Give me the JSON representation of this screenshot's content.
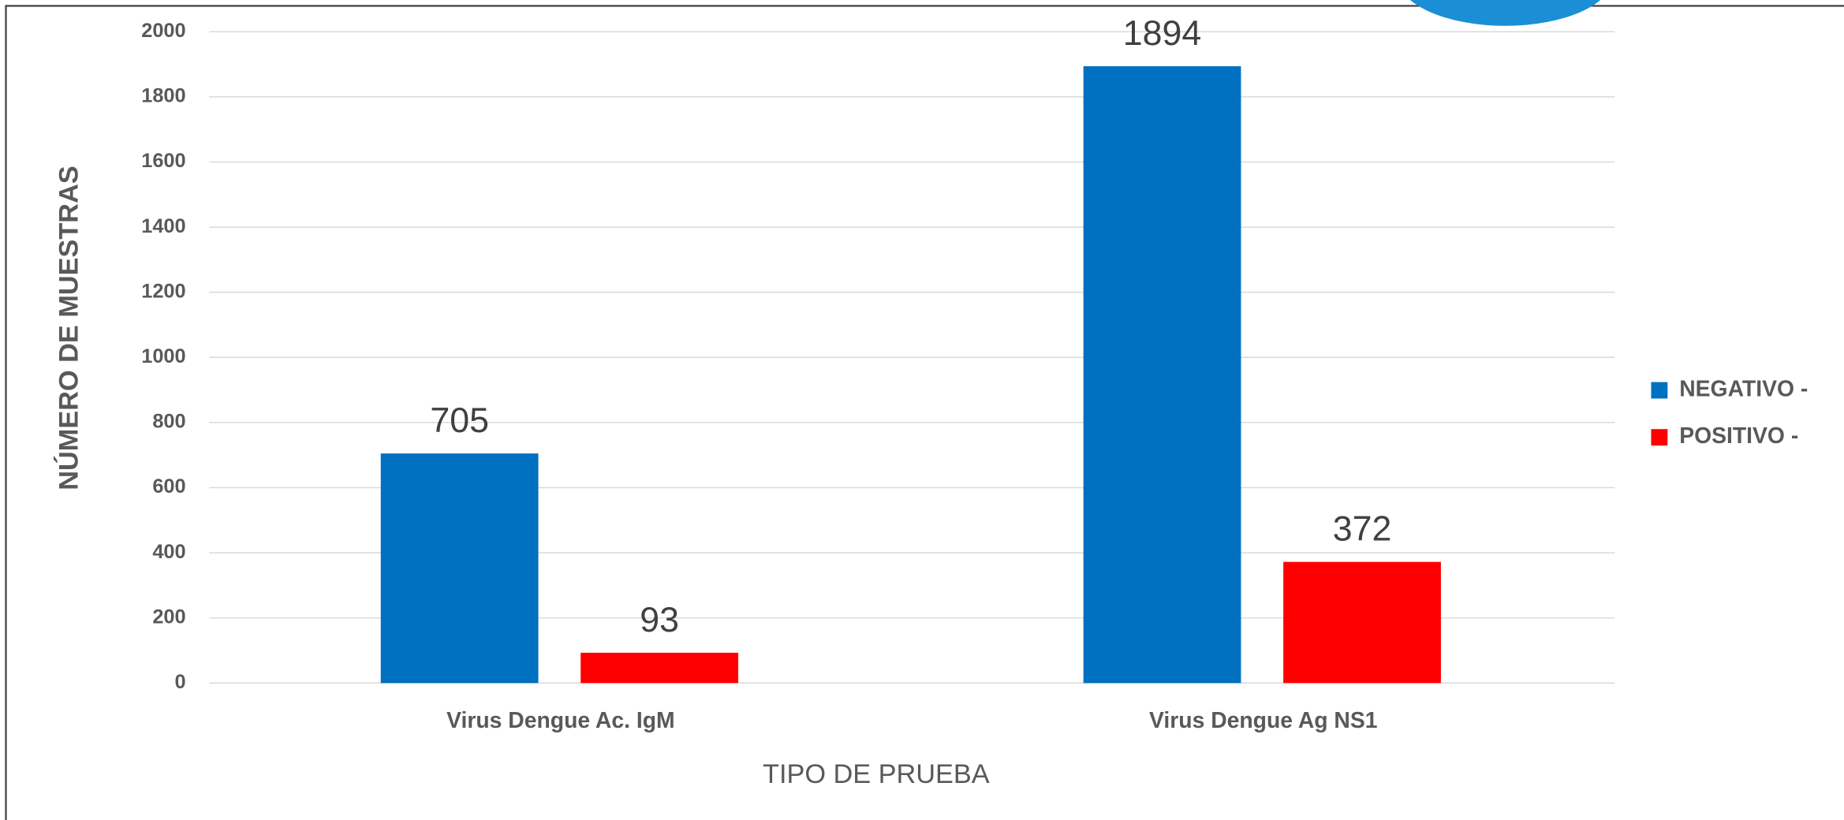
{
  "chart_data": {
    "type": "bar",
    "categories": [
      "Virus Dengue Ac. IgM",
      "Virus Dengue Ag NS1"
    ],
    "series": [
      {
        "name": "NEGATIVO -",
        "color": "#0070c0",
        "values": [
          705,
          1894
        ]
      },
      {
        "name": "POSITIVO -",
        "color": "#ff0000",
        "values": [
          93,
          372
        ]
      }
    ],
    "x_label": "TIPO DE PRUEBA",
    "y_label": "NÚMERO DE MUESTRAS",
    "ylim": [
      0,
      2000
    ],
    "yticks": [
      0,
      200,
      400,
      600,
      800,
      1000,
      1200,
      1400,
      1600,
      1800,
      2000
    ],
    "grid": true,
    "legend": "right"
  }
}
